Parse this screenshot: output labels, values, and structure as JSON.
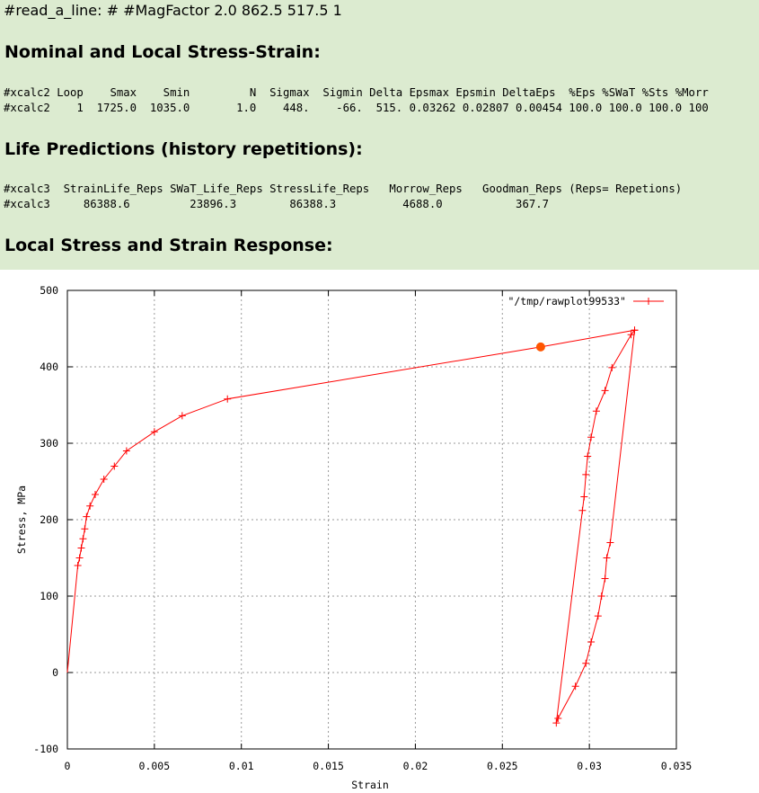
{
  "read_line": "#read_a_line: # #MagFactor 2.0 862.5 517.5 1",
  "sections": {
    "nominal": {
      "title": "Nominal and Local Stress-Strain:",
      "header": "#xcalc2 Loop    Smax    Smin         N  Sigmax  Sigmin Delta Epsmax Epsmin DeltaEps  %Eps %SWaT %Sts %Morr",
      "row": "#xcalc2    1  1725.0  1035.0       1.0    448.    -66.  515. 0.03262 0.02807 0.00454 100.0 100.0 100.0 100"
    },
    "life": {
      "title": "Life Predictions (history repetitions):",
      "header": "#xcalc3  StrainLife_Reps SWaT_Life_Reps StressLife_Reps   Morrow_Reps   Goodman_Reps (Reps= Repetions)",
      "row": "#xcalc3     86388.6         23896.3        86388.3          4688.0           367.7"
    },
    "response": {
      "title": "Local Stress and Strain Response:"
    }
  },
  "chart_data": {
    "type": "line",
    "xlabel": "Strain",
    "ylabel": "Stress, MPa",
    "xlim": [
      0,
      0.035
    ],
    "ylim": [
      -100,
      500
    ],
    "xticks": [
      "0",
      "0.005",
      "0.01",
      "0.015",
      "0.02",
      "0.025",
      "0.03",
      "0.035"
    ],
    "yticks": [
      "-100",
      "0",
      "100",
      "200",
      "300",
      "400",
      "500"
    ],
    "grid": true,
    "legend_position": "top-right",
    "line_color": "#ff0000",
    "marker_color": "#ff5500",
    "series": [
      {
        "name": "\"/tmp/rawplot99533\"",
        "points": [
          [
            0.0,
            0
          ],
          [
            0.0006,
            140
          ],
          [
            0.0007,
            150
          ],
          [
            0.0008,
            163
          ],
          [
            0.0009,
            175
          ],
          [
            0.001,
            188
          ],
          [
            0.0011,
            204
          ],
          [
            0.0013,
            218
          ],
          [
            0.0016,
            233
          ],
          [
            0.0021,
            253
          ],
          [
            0.0027,
            270
          ],
          [
            0.0034,
            290
          ],
          [
            0.005,
            315
          ],
          [
            0.0066,
            336
          ],
          [
            0.0092,
            358
          ],
          [
            0.0272,
            426
          ],
          [
            0.0326,
            448
          ],
          [
            0.0324,
            442
          ],
          [
            0.0313,
            399
          ],
          [
            0.0309,
            369
          ],
          [
            0.0304,
            342
          ],
          [
            0.0301,
            308
          ],
          [
            0.0299,
            283
          ],
          [
            0.0298,
            259
          ],
          [
            0.0297,
            230
          ],
          [
            0.0296,
            212
          ],
          [
            0.0281,
            -66
          ],
          [
            0.0282,
            -60
          ],
          [
            0.0292,
            -18
          ],
          [
            0.0298,
            12
          ],
          [
            0.0301,
            40
          ],
          [
            0.0305,
            74
          ],
          [
            0.0307,
            100
          ],
          [
            0.0309,
            123
          ],
          [
            0.031,
            150
          ],
          [
            0.0312,
            170
          ],
          [
            0.0326,
            448
          ]
        ]
      }
    ],
    "highlight_point": [
      0.0272,
      426
    ]
  }
}
